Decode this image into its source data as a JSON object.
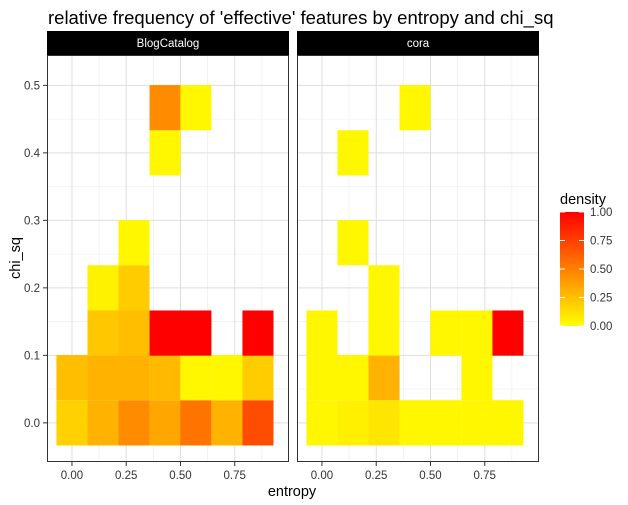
{
  "chart_data": {
    "type": "heatmap",
    "title": "relative frequency of 'effective' features by entropy and chi_sq",
    "xlabel": "entropy",
    "ylabel": "chi_sq",
    "x_ticks": [
      0.0,
      0.25,
      0.5,
      0.75
    ],
    "x_tick_labels": [
      "0.00",
      "0.25",
      "0.50",
      "0.75"
    ],
    "y_ticks": [
      0.0,
      0.1,
      0.2,
      0.3,
      0.4,
      0.5
    ],
    "y_tick_labels": [
      "0.0",
      "0.1",
      "0.2",
      "0.3",
      "0.4",
      "0.5"
    ],
    "xlim": [
      -0.115,
      1.0
    ],
    "ylim": [
      -0.058,
      0.545
    ],
    "bin_width": 0.143,
    "bin_height": 0.067,
    "grid": true,
    "legend_position": "right",
    "legend": {
      "title": "density",
      "range": [
        0,
        1
      ],
      "ticks": [
        0.0,
        0.25,
        0.5,
        0.75,
        1.0
      ],
      "tick_labels": [
        "0.00",
        "0.25",
        "0.50",
        "0.75",
        "1.00"
      ],
      "low_color": "#FFFF00",
      "high_color": "#FF0000"
    },
    "panels": [
      {
        "name": "BlogCatalog",
        "cells": [
          {
            "x": 0.0,
            "y": 0.0,
            "density": 0.18
          },
          {
            "x": 0.143,
            "y": 0.0,
            "density": 0.3
          },
          {
            "x": 0.286,
            "y": 0.0,
            "density": 0.45
          },
          {
            "x": 0.429,
            "y": 0.0,
            "density": 0.35
          },
          {
            "x": 0.571,
            "y": 0.0,
            "density": 0.55
          },
          {
            "x": 0.714,
            "y": 0.0,
            "density": 0.3
          },
          {
            "x": 0.857,
            "y": 0.0,
            "density": 0.7
          },
          {
            "x": 0.0,
            "y": 0.067,
            "density": 0.25
          },
          {
            "x": 0.143,
            "y": 0.067,
            "density": 0.3
          },
          {
            "x": 0.286,
            "y": 0.067,
            "density": 0.3
          },
          {
            "x": 0.429,
            "y": 0.067,
            "density": 0.27
          },
          {
            "x": 0.571,
            "y": 0.067,
            "density": 0.03
          },
          {
            "x": 0.714,
            "y": 0.067,
            "density": 0.03
          },
          {
            "x": 0.857,
            "y": 0.067,
            "density": 0.2
          },
          {
            "x": 0.143,
            "y": 0.133,
            "density": 0.22
          },
          {
            "x": 0.286,
            "y": 0.133,
            "density": 0.25
          },
          {
            "x": 0.429,
            "y": 0.133,
            "density": 1.0
          },
          {
            "x": 0.571,
            "y": 0.133,
            "density": 1.0
          },
          {
            "x": 0.857,
            "y": 0.133,
            "density": 1.0
          },
          {
            "x": 0.143,
            "y": 0.2,
            "density": 0.05
          },
          {
            "x": 0.286,
            "y": 0.2,
            "density": 0.2
          },
          {
            "x": 0.286,
            "y": 0.267,
            "density": 0.03
          },
          {
            "x": 0.429,
            "y": 0.4,
            "density": 0.03
          },
          {
            "x": 0.429,
            "y": 0.467,
            "density": 0.45
          },
          {
            "x": 0.571,
            "y": 0.467,
            "density": 0.03
          }
        ]
      },
      {
        "name": "cora",
        "cells": [
          {
            "x": 0.0,
            "y": 0.0,
            "density": 0.03
          },
          {
            "x": 0.143,
            "y": 0.0,
            "density": 0.06
          },
          {
            "x": 0.286,
            "y": 0.0,
            "density": 0.1
          },
          {
            "x": 0.429,
            "y": 0.0,
            "density": 0.03
          },
          {
            "x": 0.571,
            "y": 0.0,
            "density": 0.03
          },
          {
            "x": 0.714,
            "y": 0.0,
            "density": 0.03
          },
          {
            "x": 0.857,
            "y": 0.0,
            "density": 0.03
          },
          {
            "x": 0.0,
            "y": 0.067,
            "density": 0.03
          },
          {
            "x": 0.143,
            "y": 0.067,
            "density": 0.03
          },
          {
            "x": 0.286,
            "y": 0.067,
            "density": 0.3
          },
          {
            "x": 0.714,
            "y": 0.067,
            "density": 0.03
          },
          {
            "x": 0.0,
            "y": 0.133,
            "density": 0.03
          },
          {
            "x": 0.286,
            "y": 0.133,
            "density": 0.03
          },
          {
            "x": 0.571,
            "y": 0.133,
            "density": 0.03
          },
          {
            "x": 0.714,
            "y": 0.133,
            "density": 0.03
          },
          {
            "x": 0.857,
            "y": 0.133,
            "density": 1.0
          },
          {
            "x": 0.286,
            "y": 0.2,
            "density": 0.03
          },
          {
            "x": 0.143,
            "y": 0.267,
            "density": 0.03
          },
          {
            "x": 0.143,
            "y": 0.4,
            "density": 0.03
          },
          {
            "x": 0.429,
            "y": 0.467,
            "density": 0.03
          }
        ]
      }
    ]
  }
}
